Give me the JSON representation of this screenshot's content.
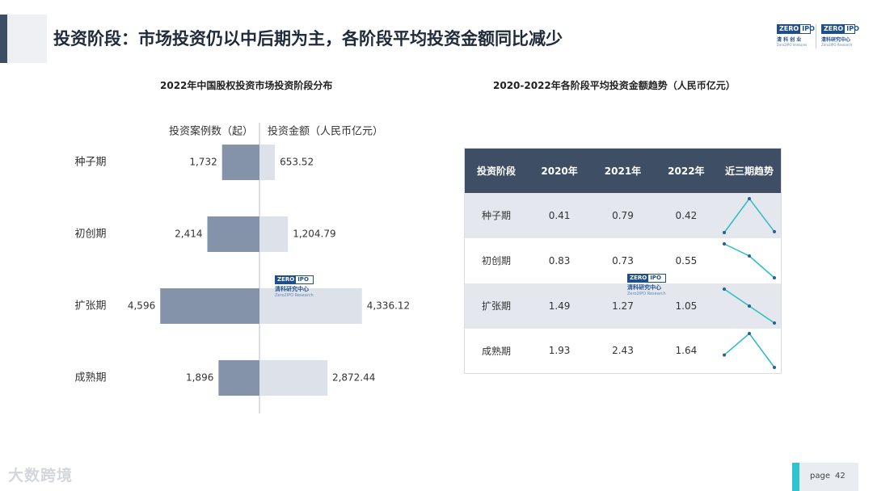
{
  "header": {
    "title": "投资阶段：市场投资仍以中后期为主，各阶段平均投资金额同比减少",
    "logos": [
      {
        "box_left": "ZERO",
        "box_right": "IPO",
        "cn": "清 科 创 业",
        "en": "Zero2IPO Ventures"
      },
      {
        "box_left": "ZERO",
        "box_right": "IPO",
        "cn": "清科研究中心",
        "en": "Zero2IPO Research"
      }
    ]
  },
  "left_section": {
    "subtitle": "2022年中国股权投资市场投资阶段分布"
  },
  "right_section": {
    "subtitle": "2020-2022年各阶段平均投资金额趋势（人民币亿元）"
  },
  "watermarks": {
    "box_left": "ZERO",
    "box_right": "IPO",
    "cn": "清科研究中心",
    "en": "Zero2IPO Research"
  },
  "chart_data": [
    {
      "type": "bar",
      "title": "2022年中国股权投资市场投资阶段分布",
      "categories": [
        "种子期",
        "初创期",
        "扩张期",
        "成熟期"
      ],
      "series": [
        {
          "name": "投资案例数（起）",
          "values": [
            1732,
            2414,
            4596,
            1896
          ],
          "labels": [
            "1,732",
            "2,414",
            "4,596",
            "1,896"
          ],
          "color": "#8493aa"
        },
        {
          "name": "投资金额（人民币亿元）",
          "values": [
            653.52,
            1204.79,
            4336.12,
            2872.44
          ],
          "labels": [
            "653.52",
            "1,204.79",
            "4,336.12",
            "2,872.44"
          ],
          "color": "#dde2ea"
        }
      ]
    },
    {
      "type": "table",
      "title": "2020-2022年各阶段平均投资金额趋势（人民币亿元）",
      "columns": [
        "投资阶段",
        "2020年",
        "2021年",
        "2022年",
        "近三期趋势"
      ],
      "rows": [
        {
          "stage": "种子期",
          "values": [
            0.41,
            0.79,
            0.42
          ],
          "labels": [
            "0.41",
            "0.79",
            "0.42"
          ]
        },
        {
          "stage": "初创期",
          "values": [
            0.83,
            0.73,
            0.55
          ],
          "labels": [
            "0.83",
            "0.73",
            "0.55"
          ]
        },
        {
          "stage": "扩张期",
          "values": [
            1.49,
            1.27,
            1.05
          ],
          "labels": [
            "1.49",
            "1.27",
            "1.05"
          ]
        },
        {
          "stage": "成熟期",
          "values": [
            1.93,
            2.43,
            1.64
          ],
          "labels": [
            "1.93",
            "2.43",
            "1.64"
          ]
        }
      ],
      "trend_color": "#2bbcc6"
    }
  ],
  "footer": {
    "brand_watermark": "大数跨境",
    "page_label": "page",
    "page_number": "42"
  },
  "colors": {
    "title_accent": "#3d4d63",
    "table_header": "#3e4e64",
    "page_accent": "#2ec4cf"
  }
}
